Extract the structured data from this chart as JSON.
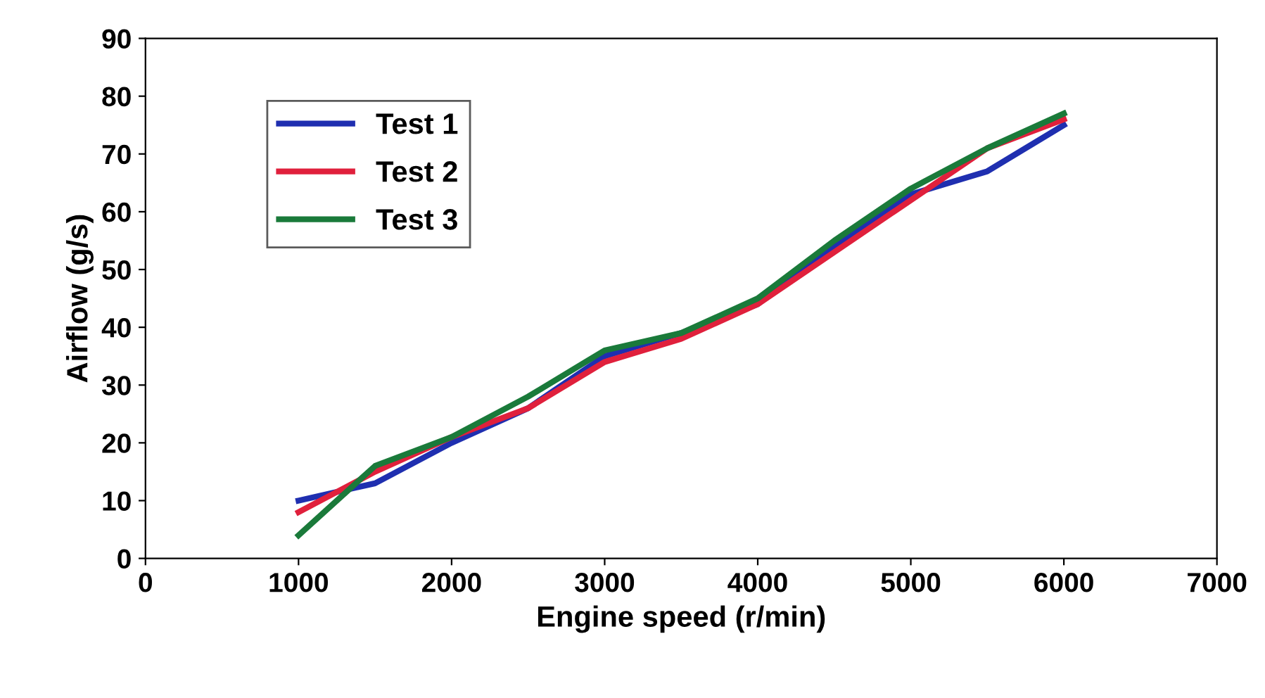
{
  "chart_data": {
    "type": "line",
    "xlabel": "Engine speed (r/min)",
    "ylabel": "Airflow (g/s)",
    "x": [
      1000,
      1500,
      2000,
      2500,
      3000,
      3500,
      4000,
      4500,
      5000,
      5500,
      6000
    ],
    "series": [
      {
        "name": "Test 1",
        "color": "#1f2fb0",
        "values": [
          10,
          13,
          20,
          26,
          35,
          39,
          44,
          54,
          63,
          67,
          75
        ]
      },
      {
        "name": "Test 2",
        "color": "#e0203c",
        "values": [
          8,
          15,
          21,
          26,
          34,
          38,
          44,
          53,
          62,
          71,
          76
        ]
      },
      {
        "name": "Test 3",
        "color": "#1a7a3a",
        "values": [
          4,
          16,
          21,
          28,
          36,
          39,
          45,
          55,
          64,
          71,
          77
        ]
      }
    ],
    "xlim": [
      0,
      7000
    ],
    "xticks": [
      0,
      1000,
      2000,
      3000,
      4000,
      5000,
      6000,
      7000
    ],
    "ylim": [
      0,
      90
    ],
    "yticks": [
      0,
      10,
      20,
      30,
      40,
      50,
      60,
      70,
      80,
      90
    ],
    "legend": "top left",
    "grid": false,
    "marker": "none",
    "line_style": "solid"
  }
}
